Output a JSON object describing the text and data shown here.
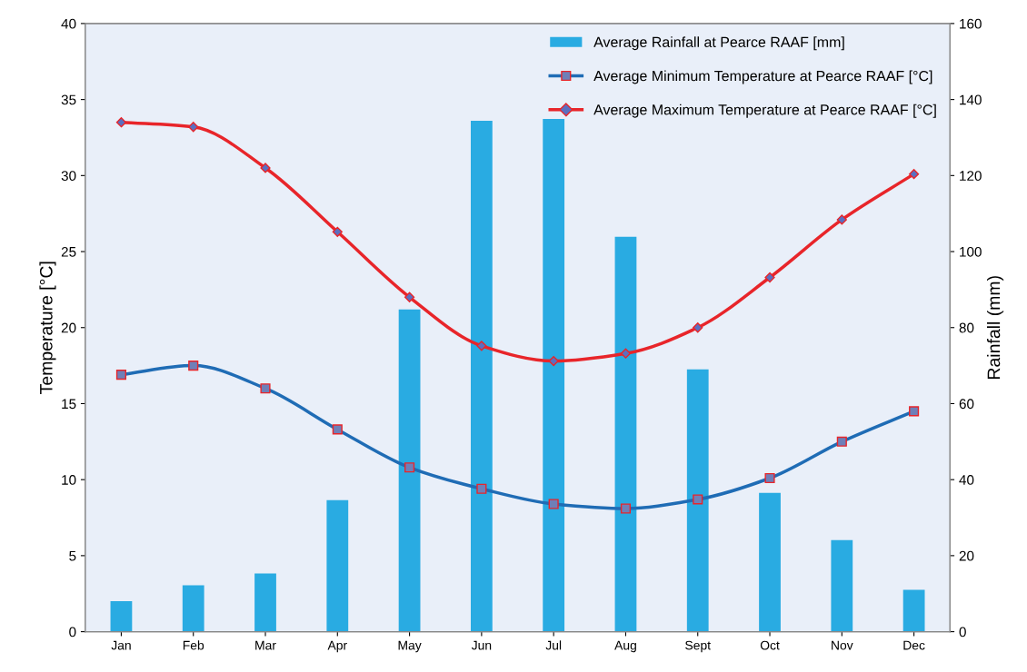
{
  "chart_data": {
    "type": "line",
    "ylabel": "Temperature [°C]",
    "y2label": "Rainfall (mm)",
    "categories": [
      "Jan",
      "Feb",
      "Mar",
      "Apr",
      "May",
      "Jun",
      "Jul",
      "Aug",
      "Sept",
      "Oct",
      "Nov",
      "Dec"
    ],
    "series": [
      {
        "name": "Average Rainfall at Pearce RAAF [mm]",
        "type": "bar",
        "axis": "y2",
        "color": "#29abe2",
        "values": [
          8,
          12.2,
          15.3,
          34.6,
          84.8,
          134.4,
          134.9,
          103.9,
          69.0,
          36.5,
          24.1,
          11.0
        ]
      },
      {
        "name": "Average Minimum Temperature at Pearce RAAF [°C]",
        "color": "#1f6cb5",
        "marker": "square",
        "values": [
          16.9,
          17.5,
          16.0,
          13.3,
          10.8,
          9.4,
          8.4,
          8.1,
          8.7,
          10.1,
          12.5,
          14.5
        ]
      },
      {
        "name": "Average Maximum Temperature at Pearce RAAF [°C]",
        "color": "#e8252a",
        "marker": "diamond",
        "values": [
          33.5,
          33.2,
          30.5,
          26.3,
          22.0,
          18.8,
          17.8,
          18.3,
          20.0,
          23.3,
          27.1,
          30.1
        ]
      }
    ],
    "ylim": [
      0,
      40
    ],
    "yticks": [
      0,
      5,
      10,
      15,
      20,
      25,
      30,
      35,
      40
    ],
    "y2lim": [
      0,
      160
    ],
    "y2ticks": [
      0,
      20,
      40,
      60,
      80,
      100,
      120,
      140,
      160
    ],
    "grid": false,
    "legend": "top right",
    "line_style": "solid"
  }
}
